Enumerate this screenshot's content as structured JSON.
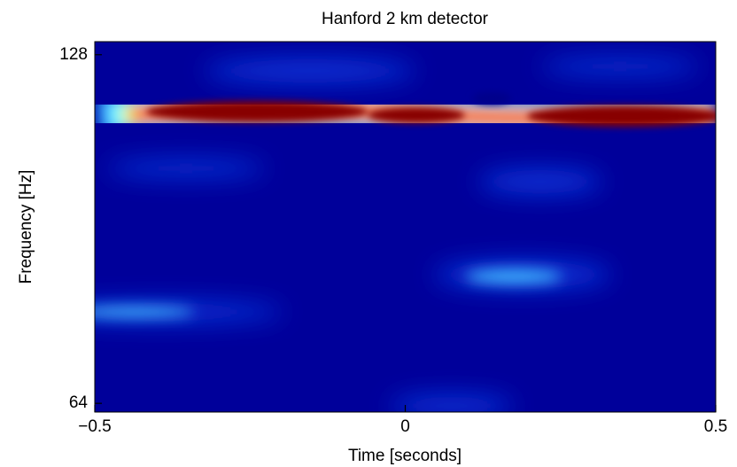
{
  "chart_data": {
    "type": "spectrogram",
    "title": "Hanford 2 km detector",
    "xlabel": "Time [seconds]",
    "ylabel": "Frequency [Hz]",
    "xlim": [
      -0.5,
      0.5
    ],
    "xticks": [
      {
        "value": -0.5,
        "label": "−0.5"
      },
      0,
      0.5
    ],
    "ylim": [
      62.4,
      130.4
    ],
    "yticks": [
      64,
      128
    ]
  }
}
